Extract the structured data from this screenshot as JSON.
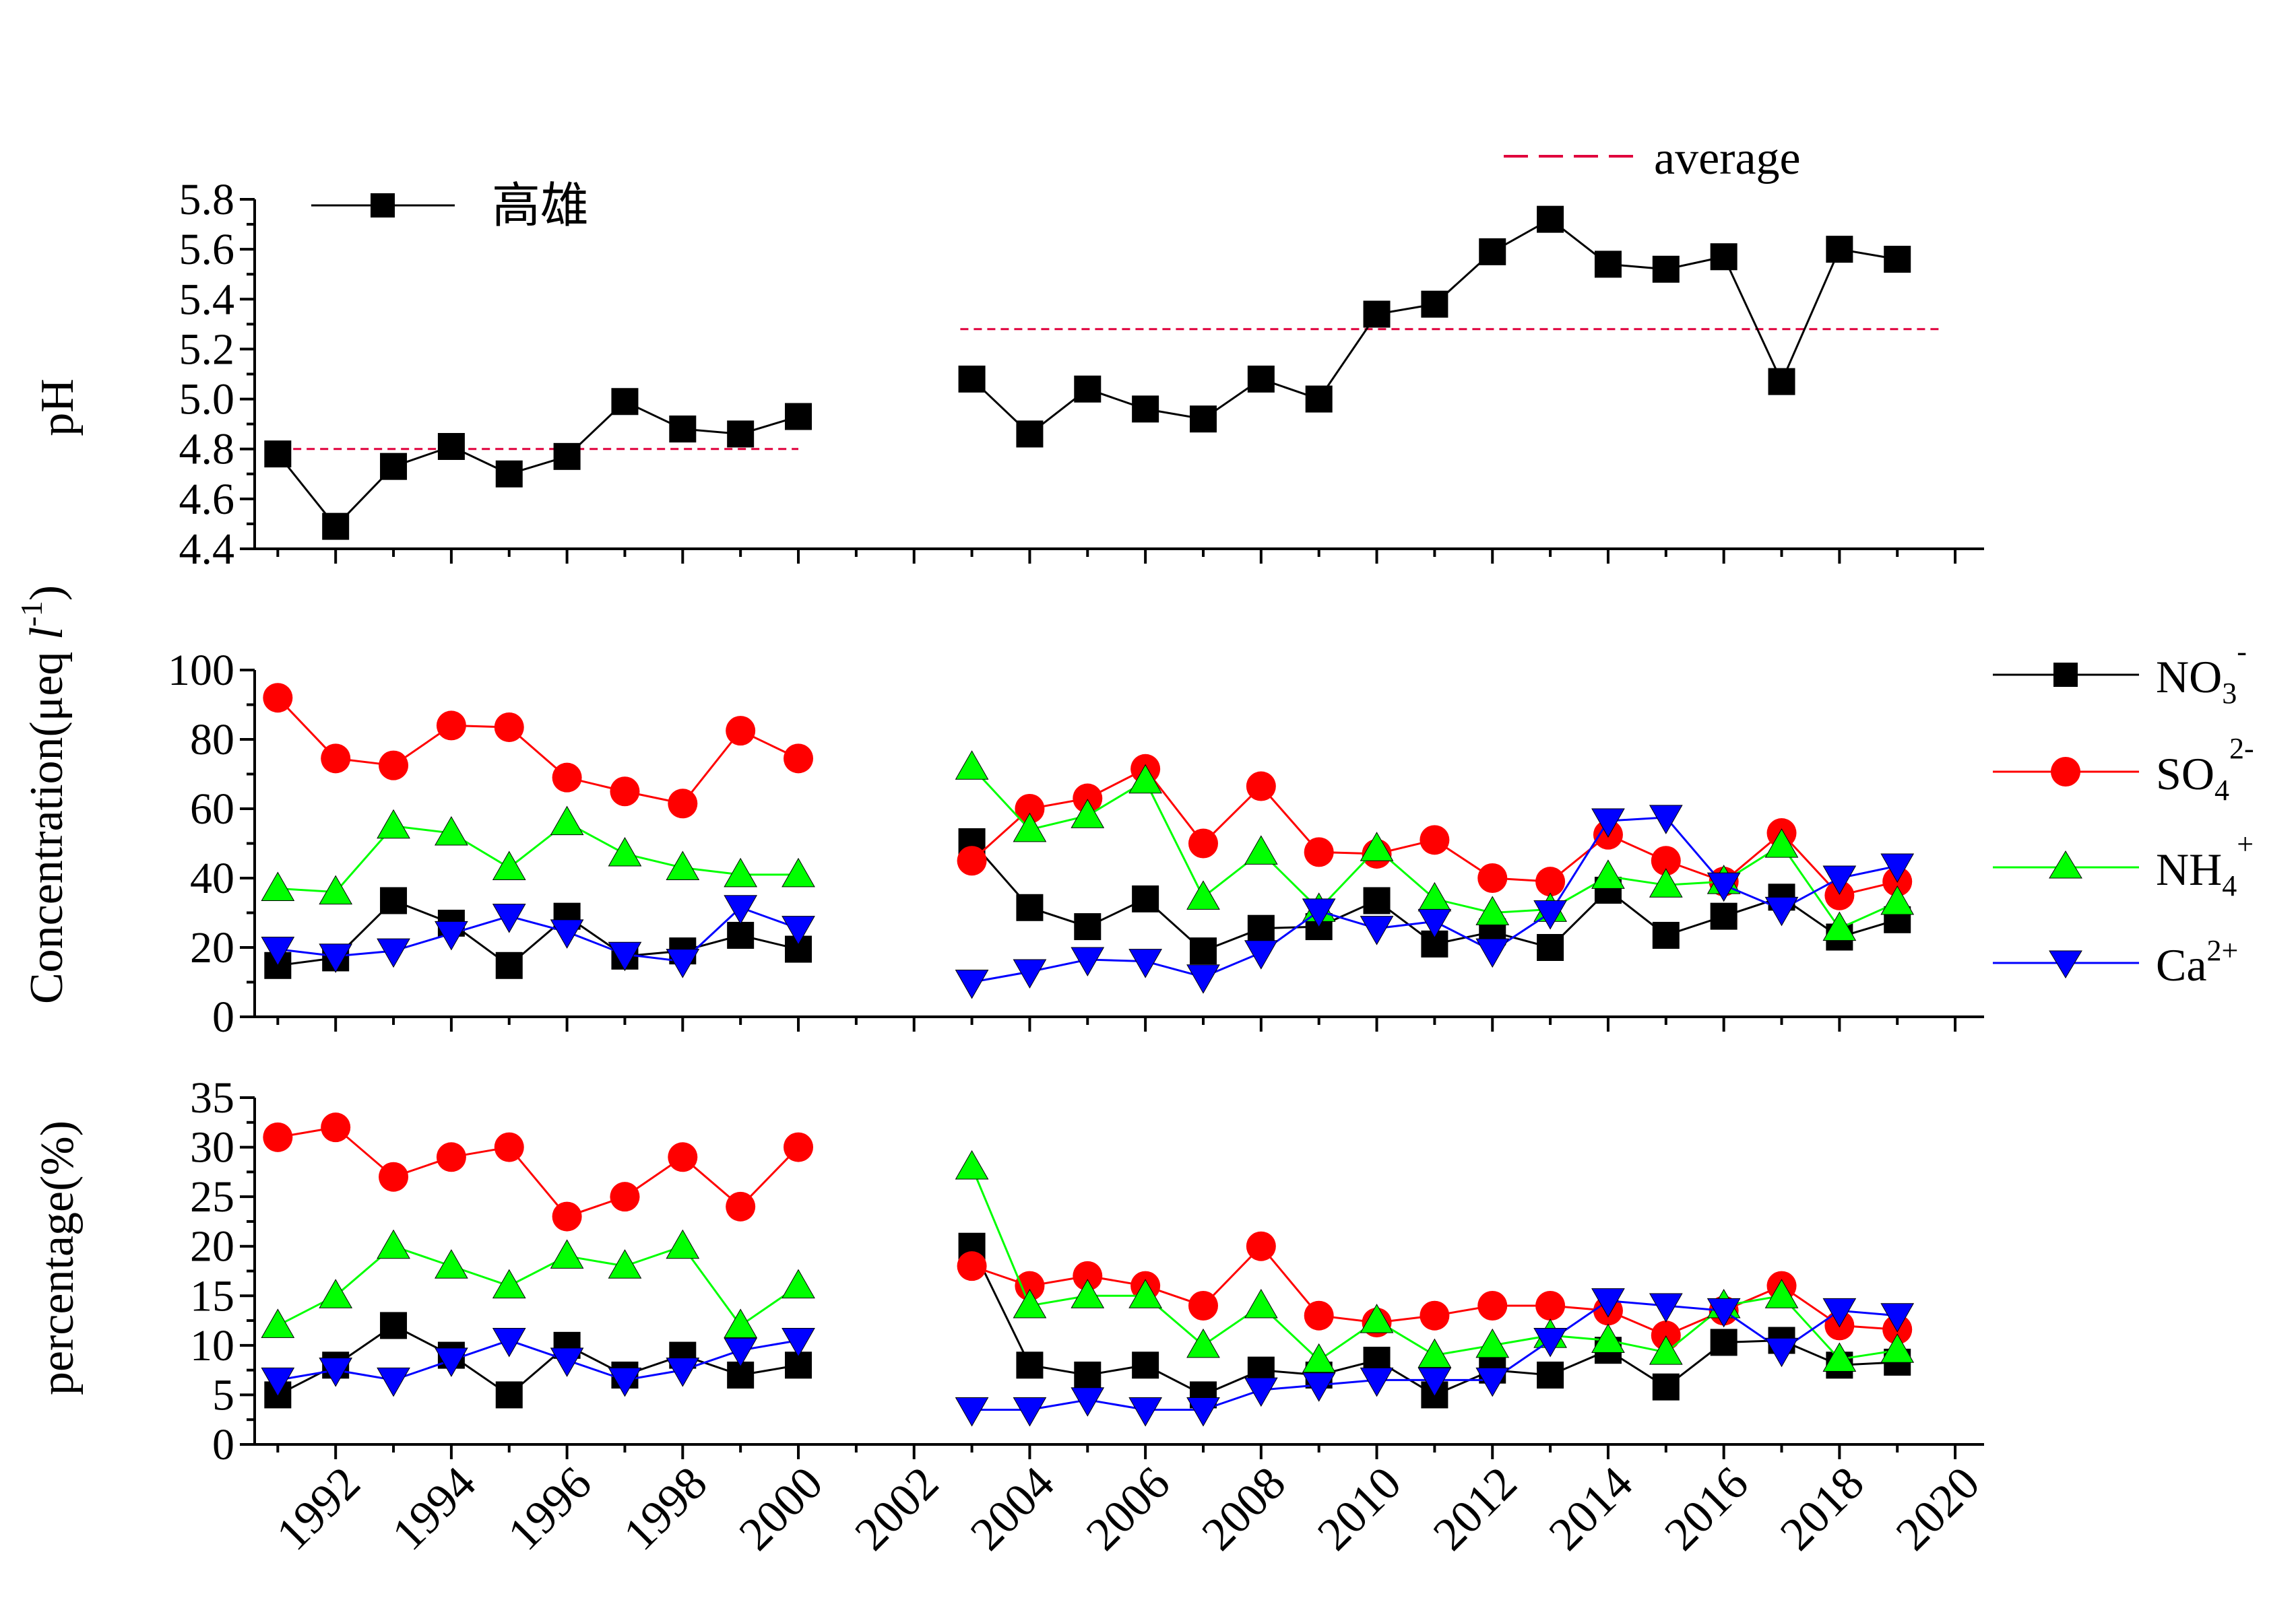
{
  "chart_data": [
    {
      "type": "line",
      "panel": "ph",
      "ylabel": "pH",
      "ylim": [
        4.4,
        5.8
      ],
      "yticks": [
        "4.4",
        "4.6",
        "4.8",
        "5.0",
        "5.2",
        "5.4",
        "5.6",
        "5.8"
      ],
      "xlim": [
        1990.6,
        2020.5
      ],
      "series": [
        {
          "name": "高雄",
          "color": "#000000",
          "marker": "square",
          "x": [
            1991,
            1992,
            1993,
            1994,
            1995,
            1996,
            1997,
            1998,
            1999,
            2000,
            2003,
            2004,
            2005,
            2006,
            2007,
            2008,
            2009,
            2010,
            2011,
            2012,
            2013,
            2014,
            2015,
            2016,
            2017,
            2018,
            2019
          ],
          "values": [
            4.78,
            4.49,
            4.73,
            4.81,
            4.7,
            4.77,
            4.99,
            4.88,
            4.86,
            4.93,
            5.08,
            4.86,
            5.04,
            4.96,
            4.92,
            5.08,
            5.0,
            5.34,
            5.38,
            5.59,
            5.72,
            5.54,
            5.52,
            5.57,
            5.07,
            5.6,
            5.56
          ],
          "segments": [
            [
              0,
              9
            ],
            [
              10,
              26
            ]
          ]
        }
      ],
      "average": {
        "name": "average",
        "color": "#e0003c",
        "lines": [
          {
            "x": [
              1990.8,
              2000
            ],
            "value": 4.8
          },
          {
            "x": [
              2002.8,
              2019.8
            ],
            "value": 5.28
          }
        ]
      }
    },
    {
      "type": "line",
      "panel": "concentration",
      "ylabel": "Concentration(μeq l⁻¹)",
      "ylim": [
        0,
        100
      ],
      "yticks": [
        "0",
        "20",
        "40",
        "60",
        "80",
        "100"
      ],
      "xlim": [
        1990.6,
        2020.5
      ],
      "x": [
        1991,
        1992,
        1993,
        1994,
        1995,
        1996,
        1997,
        1998,
        1999,
        2000,
        2003,
        2004,
        2005,
        2006,
        2007,
        2008,
        2009,
        2010,
        2011,
        2012,
        2013,
        2014,
        2015,
        2016,
        2017,
        2018,
        2019
      ],
      "segments": [
        [
          0,
          9
        ],
        [
          10,
          26
        ]
      ],
      "series": [
        {
          "name": "NO3-",
          "color": "#000000",
          "marker": "square",
          "values": [
            14.8,
            17.0,
            33.5,
            27.0,
            14.8,
            29.0,
            17.5,
            19.0,
            23.5,
            19.5,
            50.5,
            31.5,
            26.0,
            34.0,
            19.0,
            25.5,
            26.0,
            33.5,
            21.0,
            24.5,
            20.0,
            36.5,
            23.5,
            29.0,
            34.5,
            23.0,
            28.0
          ]
        },
        {
          "name": "SO42-",
          "color": "#ff0000",
          "marker": "circle",
          "values": [
            92.0,
            74.5,
            72.5,
            84.0,
            83.5,
            69.0,
            65.0,
            61.5,
            82.5,
            74.5,
            45.0,
            60.0,
            63.0,
            71.5,
            50.0,
            66.5,
            47.5,
            47.0,
            51.0,
            40.0,
            39.0,
            52.5,
            45.0,
            39.0,
            53.0,
            35.0,
            39.0
          ]
        },
        {
          "name": "NH4+",
          "color": "#00ff00",
          "marker": "triangle-up",
          "values": [
            37.0,
            36.0,
            55.0,
            53.0,
            43.0,
            56.0,
            47.0,
            43.0,
            41.0,
            41.0,
            72.0,
            54.0,
            58.0,
            68.0,
            34.5,
            47.5,
            31.0,
            48.5,
            34.0,
            30.0,
            31.0,
            40.5,
            38.0,
            39.0,
            49.5,
            25.5,
            33.0
          ]
        },
        {
          "name": "Ca2+",
          "color": "#0000ff",
          "marker": "triangle-down",
          "values": [
            19.5,
            17.5,
            19.0,
            24.0,
            29.0,
            24.5,
            18.0,
            16.0,
            31.5,
            25.5,
            10.0,
            13.0,
            16.5,
            16.0,
            11.5,
            18.5,
            30.5,
            25.5,
            27.5,
            19.0,
            30.0,
            56.5,
            57.5,
            38.0,
            31.0,
            40.0,
            43.5
          ]
        }
      ],
      "legend": [
        "NO3-",
        "SO42-",
        "NH4+",
        "Ca2+"
      ]
    },
    {
      "type": "line",
      "panel": "percentage",
      "ylabel": "percentage(%)",
      "ylim": [
        0,
        35
      ],
      "yticks": [
        "0",
        "5",
        "10",
        "15",
        "20",
        "25",
        "30",
        "35"
      ],
      "xlim": [
        1990.6,
        2020.5
      ],
      "xticks": [
        "1992",
        "1994",
        "1996",
        "1998",
        "2000",
        "2002",
        "2004",
        "2006",
        "2008",
        "2010",
        "2012",
        "2014",
        "2016",
        "2018",
        "2020"
      ],
      "x": [
        1991,
        1992,
        1993,
        1994,
        1995,
        1996,
        1997,
        1998,
        1999,
        2000,
        2003,
        2004,
        2005,
        2006,
        2007,
        2008,
        2009,
        2010,
        2011,
        2012,
        2013,
        2014,
        2015,
        2016,
        2017,
        2018,
        2019
      ],
      "segments": [
        [
          0,
          9
        ],
        [
          10,
          26
        ]
      ],
      "series": [
        {
          "name": "NO3-",
          "color": "#000000",
          "marker": "square",
          "values": [
            5.0,
            8.0,
            12.0,
            9.0,
            5.0,
            10.0,
            7.0,
            9.0,
            7.0,
            8.0,
            20.0,
            8.0,
            7.0,
            8.0,
            5.0,
            7.5,
            7.0,
            8.5,
            5.0,
            7.5,
            7.0,
            9.5,
            5.8,
            10.3,
            10.5,
            8.0,
            8.3
          ]
        },
        {
          "name": "SO42-",
          "color": "#ff0000",
          "marker": "circle",
          "values": [
            31.0,
            32.0,
            27.0,
            29.0,
            30.0,
            23.0,
            25.0,
            29.0,
            24.0,
            30.0,
            18.0,
            16.0,
            17.0,
            16.0,
            14.0,
            20.0,
            13.0,
            12.3,
            13.0,
            14.0,
            14.0,
            13.5,
            11.0,
            13.5,
            16.0,
            12.0,
            11.6
          ]
        },
        {
          "name": "NH4+",
          "color": "#00ff00",
          "marker": "triangle-up",
          "values": [
            12.0,
            15.0,
            20.0,
            18.0,
            16.0,
            19.0,
            18.0,
            20.0,
            12.0,
            16.0,
            28.0,
            14.0,
            15.0,
            15.0,
            10.0,
            14.0,
            8.5,
            12.5,
            9.0,
            10.0,
            11.0,
            10.5,
            9.3,
            14.0,
            15.0,
            8.6,
            9.5
          ]
        },
        {
          "name": "Ca2+",
          "color": "#0000ff",
          "marker": "triangle-down",
          "values": [
            6.5,
            7.5,
            6.5,
            8.5,
            10.5,
            8.5,
            6.5,
            7.5,
            9.5,
            10.5,
            3.5,
            3.5,
            4.5,
            3.5,
            3.5,
            5.5,
            6.0,
            6.5,
            6.5,
            6.5,
            10.5,
            14.5,
            14.0,
            13.5,
            9.5,
            13.5,
            13.0
          ]
        }
      ]
    }
  ]
}
